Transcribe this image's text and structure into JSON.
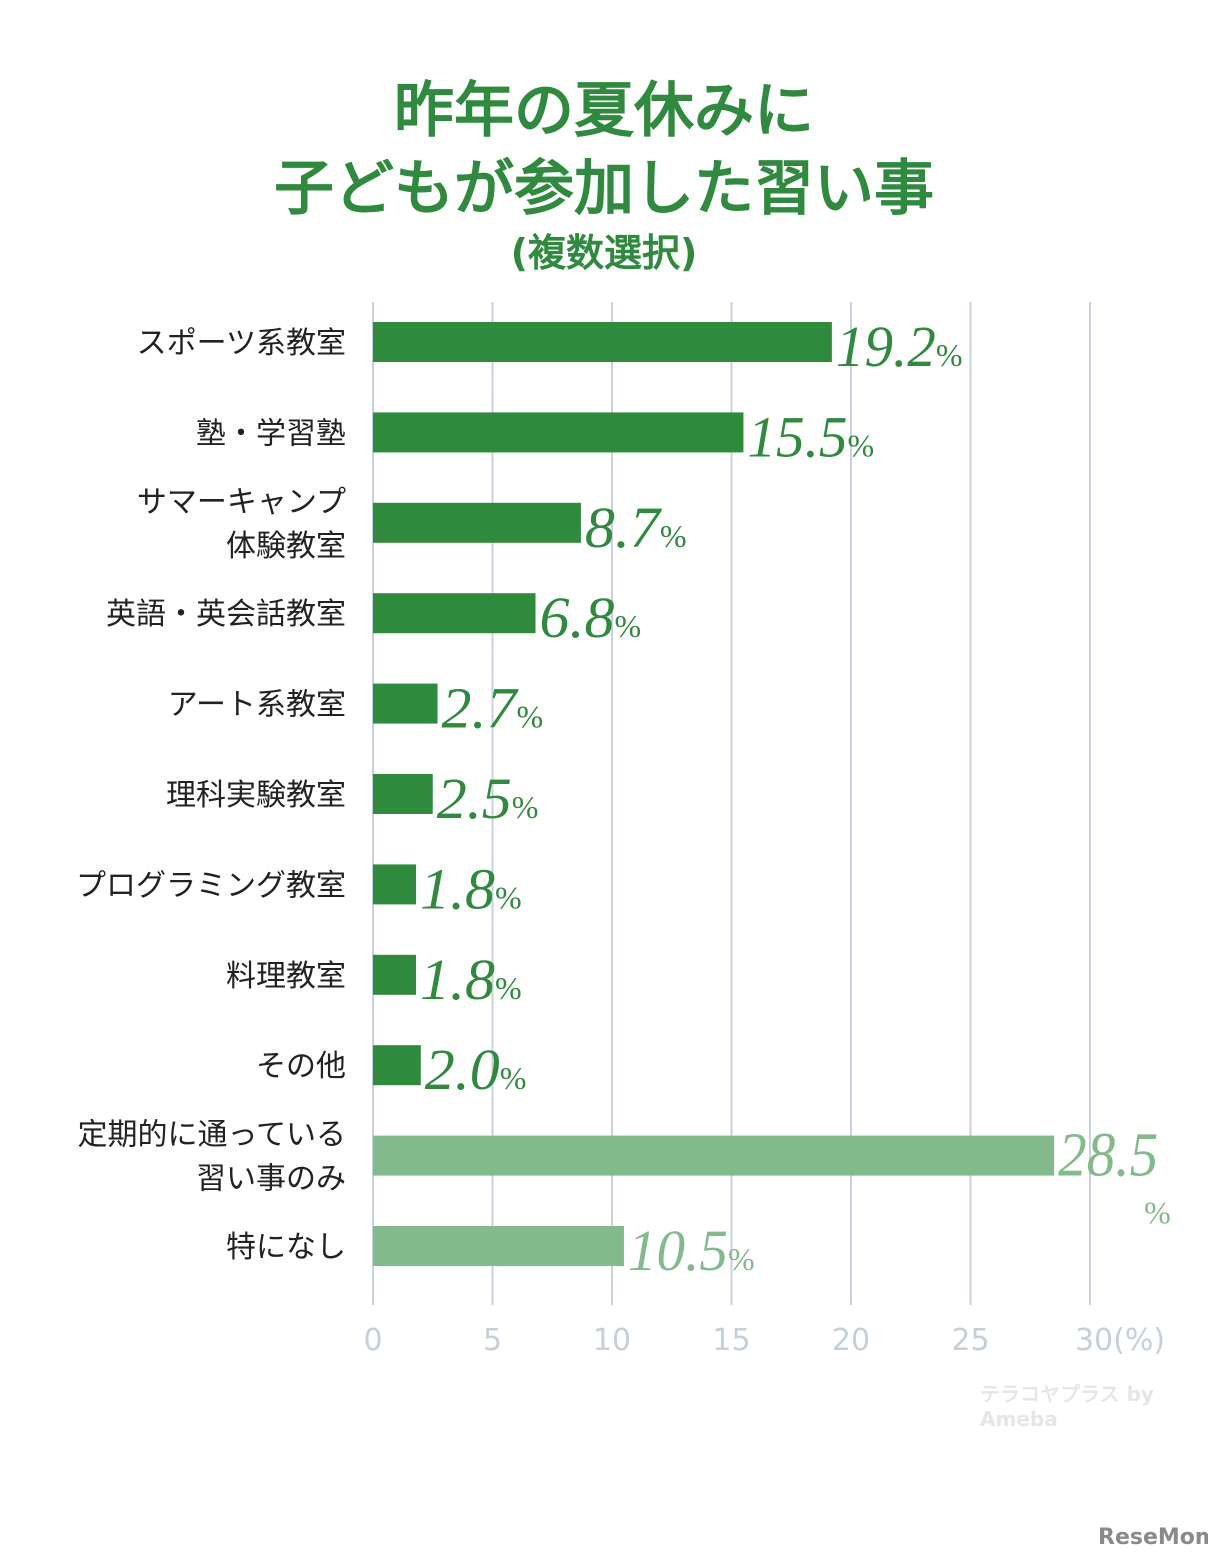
{
  "chart_data": {
    "type": "bar",
    "orientation": "horizontal",
    "title": "昨年の夏休みに子どもが参加した習い事",
    "title_lines": [
      "昨年の夏休みに",
      "子どもが参加した習い事"
    ],
    "subtitle": "(複数選択)",
    "categories": [
      [
        "スポーツ系教室"
      ],
      [
        "塾・学習塾"
      ],
      [
        "サマーキャンプ",
        "体験教室"
      ],
      [
        "英語・英会話教室"
      ],
      [
        "アート系教室"
      ],
      [
        "理科実験教室"
      ],
      [
        "プログラミング教室"
      ],
      [
        "料理教室"
      ],
      [
        "その他"
      ],
      [
        "定期的に通っている",
        "習い事のみ"
      ],
      [
        "特になし"
      ]
    ],
    "values": [
      19.2,
      15.5,
      8.7,
      6.8,
      2.7,
      2.5,
      1.8,
      1.8,
      2.0,
      28.5,
      10.5
    ],
    "value_labels": [
      "19.2",
      "15.5",
      "8.7",
      "6.8",
      "2.7",
      "2.5",
      "1.8",
      "1.8",
      "2.0",
      "28.5",
      "10.5"
    ],
    "value_suffix": "%",
    "bar_groups": [
      "dark",
      "dark",
      "dark",
      "dark",
      "dark",
      "dark",
      "dark",
      "dark",
      "dark",
      "light",
      "light"
    ],
    "colors": {
      "dark": "#2e8b3e",
      "light": "#82ba8c",
      "grid": "#c8d2de",
      "tick": "#c5cfdb",
      "label": "#222222"
    },
    "xlim": [
      0,
      30
    ],
    "xticks": [
      "0",
      "5",
      "10",
      "15",
      "20",
      "25",
      "30(%)"
    ],
    "xtick_values": [
      0,
      5,
      10,
      15,
      20,
      25,
      30
    ],
    "grid": true,
    "xlabel": "",
    "ylabel": ""
  },
  "watermarks": {
    "source": "テラコヤプラス by Ameba",
    "publisher": "ReseMom"
  }
}
